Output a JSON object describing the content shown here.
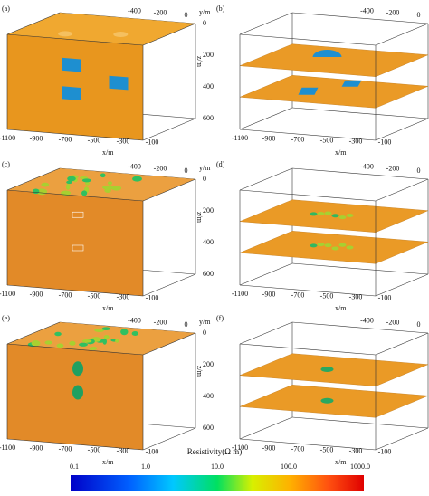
{
  "panels": [
    {
      "label": "(a)",
      "y_axis": {
        "title": "y/m",
        "ticks": [
          "-400",
          "-200",
          "0"
        ]
      },
      "x_axis": {
        "title": "x/m",
        "ticks": [
          "-1100",
          "-900",
          "-700",
          "-500",
          "-300",
          "-100"
        ]
      },
      "z_axis": {
        "title": "z/m",
        "ticks": [
          "0",
          "200",
          "400",
          "600"
        ]
      }
    },
    {
      "label": "(b)",
      "y_axis": {
        "title": "y/m",
        "ticks": [
          "-400",
          "-200",
          "0"
        ]
      },
      "x_axis": {
        "title": "x/m",
        "ticks": [
          "-1100",
          "-900",
          "-700",
          "-500",
          "-300",
          "-100"
        ]
      },
      "z_axis": {
        "title": "z/m",
        "ticks": [
          "0",
          "200",
          "400",
          "600"
        ]
      }
    },
    {
      "label": "(c)",
      "y_axis": {
        "title": "y/m",
        "ticks": [
          "-400",
          "-200",
          "0"
        ]
      },
      "x_axis": {
        "title": "x/m",
        "ticks": [
          "-1100",
          "-900",
          "-700",
          "-500",
          "-300",
          "-100"
        ]
      },
      "z_axis": {
        "title": "z/m",
        "ticks": [
          "0",
          "200",
          "400",
          "600"
        ]
      }
    },
    {
      "label": "(d)",
      "y_axis": {
        "title": "y/m",
        "ticks": [
          "-400",
          "-200",
          "0"
        ]
      },
      "x_axis": {
        "title": "x/m",
        "ticks": [
          "-1100",
          "-900",
          "-700",
          "-500",
          "-300",
          "-100"
        ]
      },
      "z_axis": {
        "title": "z/m",
        "ticks": [
          "0",
          "200",
          "400",
          "600"
        ]
      }
    },
    {
      "label": "(e)",
      "y_axis": {
        "title": "y/m",
        "ticks": [
          "-400",
          "-200",
          "0"
        ]
      },
      "x_axis": {
        "title": "x/m",
        "ticks": [
          "-1100",
          "-900",
          "-700",
          "-500",
          "-300",
          "-100"
        ]
      },
      "z_axis": {
        "title": "z/m",
        "ticks": [
          "0",
          "200",
          "400",
          "600"
        ]
      }
    },
    {
      "label": "(f)",
      "y_axis": {
        "title": "y/m",
        "ticks": [
          "-400",
          "-200",
          "0"
        ]
      },
      "x_axis": {
        "title": "x/m",
        "ticks": [
          "-1100",
          "-900",
          "-700",
          "-500",
          "-300",
          "-100"
        ]
      },
      "z_axis": {
        "title": "z/m",
        "ticks": [
          "0",
          "200",
          "400",
          "600"
        ]
      }
    }
  ],
  "colorbar": {
    "title": "Resistivity(Ω m)",
    "ticks": [
      "0.1",
      "1.0",
      "10.0",
      "100.0",
      "1000.0"
    ]
  }
}
